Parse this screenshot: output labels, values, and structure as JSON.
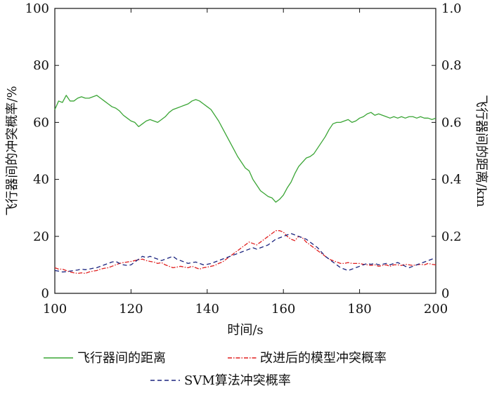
{
  "chart_data": {
    "type": "line",
    "xlabel": "时间/s",
    "ylabel_left": "飞行器间的冲突概率/%",
    "ylabel_right": "飞行器间的距离/km",
    "xlim": [
      100,
      200
    ],
    "ylim_left": [
      0,
      100
    ],
    "ylim_right": [
      0,
      1.0
    ],
    "x_ticks": [
      "100",
      "120",
      "140",
      "160",
      "180",
      "200"
    ],
    "y_ticks_left": [
      "0",
      "20",
      "40",
      "60",
      "80",
      "100"
    ],
    "y_ticks_right": [
      "0",
      "0.2",
      "0.4",
      "0.6",
      "0.8",
      "1.0"
    ],
    "grid": false,
    "legend_position": "bottom",
    "series": [
      {
        "name": "飞行器间的距离",
        "axis": "right",
        "color": "#3aa535",
        "style": "solid",
        "x": [
          100,
          101,
          102,
          103,
          104,
          105,
          106,
          107,
          108,
          109,
          110,
          111,
          112,
          113,
          114,
          115,
          116,
          117,
          118,
          119,
          120,
          121,
          122,
          123,
          124,
          125,
          126,
          127,
          128,
          129,
          130,
          131,
          132,
          133,
          134,
          135,
          136,
          137,
          138,
          139,
          140,
          141,
          142,
          143,
          144,
          145,
          146,
          147,
          148,
          149,
          150,
          151,
          152,
          153,
          154,
          155,
          156,
          157,
          158,
          159,
          160,
          161,
          162,
          163,
          164,
          165,
          166,
          167,
          168,
          169,
          170,
          171,
          172,
          173,
          174,
          175,
          176,
          177,
          178,
          179,
          180,
          181,
          182,
          183,
          184,
          185,
          186,
          187,
          188,
          189,
          190,
          191,
          192,
          193,
          194,
          195,
          196,
          197,
          198,
          199,
          200
        ],
        "y": [
          0.645,
          0.675,
          0.67,
          0.695,
          0.675,
          0.675,
          0.685,
          0.69,
          0.685,
          0.685,
          0.69,
          0.695,
          0.685,
          0.675,
          0.665,
          0.655,
          0.65,
          0.64,
          0.625,
          0.615,
          0.605,
          0.6,
          0.585,
          0.595,
          0.605,
          0.61,
          0.605,
          0.6,
          0.61,
          0.62,
          0.635,
          0.645,
          0.65,
          0.655,
          0.66,
          0.665,
          0.675,
          0.68,
          0.675,
          0.665,
          0.655,
          0.645,
          0.625,
          0.605,
          0.58,
          0.555,
          0.53,
          0.505,
          0.48,
          0.46,
          0.44,
          0.43,
          0.4,
          0.38,
          0.36,
          0.35,
          0.34,
          0.335,
          0.32,
          0.33,
          0.345,
          0.37,
          0.39,
          0.42,
          0.445,
          0.46,
          0.475,
          0.48,
          0.49,
          0.51,
          0.53,
          0.55,
          0.575,
          0.595,
          0.6,
          0.6,
          0.605,
          0.61,
          0.6,
          0.605,
          0.615,
          0.62,
          0.63,
          0.635,
          0.625,
          0.63,
          0.625,
          0.62,
          0.615,
          0.62,
          0.615,
          0.62,
          0.615,
          0.62,
          0.62,
          0.615,
          0.62,
          0.615,
          0.615,
          0.61,
          0.615
        ]
      },
      {
        "name": "改进后的模型冲突概率",
        "axis": "left",
        "color": "#e01e1e",
        "style": "dashdot",
        "x": [
          100,
          101,
          102,
          103,
          104,
          105,
          106,
          107,
          108,
          109,
          110,
          111,
          112,
          113,
          114,
          115,
          116,
          117,
          118,
          119,
          120,
          121,
          122,
          123,
          124,
          125,
          126,
          127,
          128,
          129,
          130,
          131,
          132,
          133,
          134,
          135,
          136,
          137,
          138,
          139,
          140,
          141,
          142,
          143,
          144,
          145,
          146,
          147,
          148,
          149,
          150,
          151,
          152,
          153,
          154,
          155,
          156,
          157,
          158,
          159,
          160,
          161,
          162,
          163,
          164,
          165,
          166,
          167,
          168,
          169,
          170,
          171,
          172,
          173,
          174,
          175,
          176,
          177,
          178,
          179,
          180,
          181,
          182,
          183,
          184,
          185,
          186,
          187,
          188,
          189,
          190,
          191,
          192,
          193,
          194,
          195,
          196,
          197,
          198,
          199,
          200
        ],
        "y": [
          9,
          8.5,
          8.5,
          8,
          7.5,
          7.2,
          7,
          7.2,
          7,
          7.5,
          7.8,
          8,
          8.5,
          8.8,
          9,
          9.5,
          10,
          10.5,
          10.8,
          11,
          11.2,
          11.5,
          11.8,
          12,
          11.5,
          11.2,
          11,
          10.5,
          10.8,
          10,
          9.5,
          9,
          9.2,
          9.5,
          9.2,
          9,
          9.5,
          9,
          8.5,
          9,
          9.2,
          9.5,
          9.8,
          10.5,
          11,
          12,
          13,
          14,
          15,
          16,
          17,
          18,
          17.5,
          17,
          18,
          19,
          20,
          21,
          22,
          22,
          21.5,
          20,
          19,
          18.5,
          20,
          19.5,
          18,
          17,
          16,
          15,
          14,
          13,
          12,
          11.5,
          11,
          10.5,
          10.5,
          10.8,
          10.5,
          10.5,
          10.5,
          10.2,
          10,
          9.8,
          10,
          9.5,
          9.8,
          10,
          9.5,
          10,
          10,
          9.8,
          10.2,
          10,
          9.8,
          10,
          10.2,
          10,
          10.5,
          10.2,
          10
        ]
      },
      {
        "name": "SVM算法冲突概率",
        "axis": "left",
        "color": "#1a237e",
        "style": "dashed",
        "x": [
          100,
          101,
          102,
          103,
          104,
          105,
          106,
          107,
          108,
          109,
          110,
          111,
          112,
          113,
          114,
          115,
          116,
          117,
          118,
          119,
          120,
          121,
          122,
          123,
          124,
          125,
          126,
          127,
          128,
          129,
          130,
          131,
          132,
          133,
          134,
          135,
          136,
          137,
          138,
          139,
          140,
          141,
          142,
          143,
          144,
          145,
          146,
          147,
          148,
          149,
          150,
          151,
          152,
          153,
          154,
          155,
          156,
          157,
          158,
          159,
          160,
          161,
          162,
          163,
          164,
          165,
          166,
          167,
          168,
          169,
          170,
          171,
          172,
          173,
          174,
          175,
          176,
          177,
          178,
          179,
          180,
          181,
          182,
          183,
          184,
          185,
          186,
          187,
          188,
          189,
          190,
          191,
          192,
          193,
          194,
          195,
          196,
          197,
          198,
          199,
          200
        ],
        "y": [
          8,
          7.8,
          7.5,
          7.6,
          7.8,
          8,
          8.2,
          8.5,
          8.3,
          8.5,
          8.8,
          9,
          9.5,
          10,
          10.5,
          11,
          11.2,
          10.5,
          10,
          9.8,
          10,
          11,
          12,
          13,
          12.5,
          13,
          12.5,
          12,
          11.5,
          12,
          12.5,
          13,
          12,
          11.5,
          11,
          10.5,
          10.8,
          11,
          10.5,
          10,
          10.2,
          10.5,
          11,
          11.5,
          12,
          12.5,
          13,
          13.5,
          14,
          14.5,
          15,
          15.5,
          16,
          15.5,
          16,
          16.5,
          17,
          18,
          19,
          19.5,
          20,
          20.5,
          21,
          20.5,
          20,
          19.5,
          19,
          18,
          17,
          16,
          14.5,
          13,
          12,
          11,
          10,
          9,
          8.5,
          8,
          8.5,
          9,
          9.5,
          10,
          10.5,
          10.2,
          10.5,
          10,
          10.2,
          10.5,
          10,
          10.5,
          10.8,
          10.2,
          9.5,
          9,
          9.5,
          10,
          10.5,
          11,
          11.5,
          12,
          12.5
        ]
      }
    ]
  }
}
